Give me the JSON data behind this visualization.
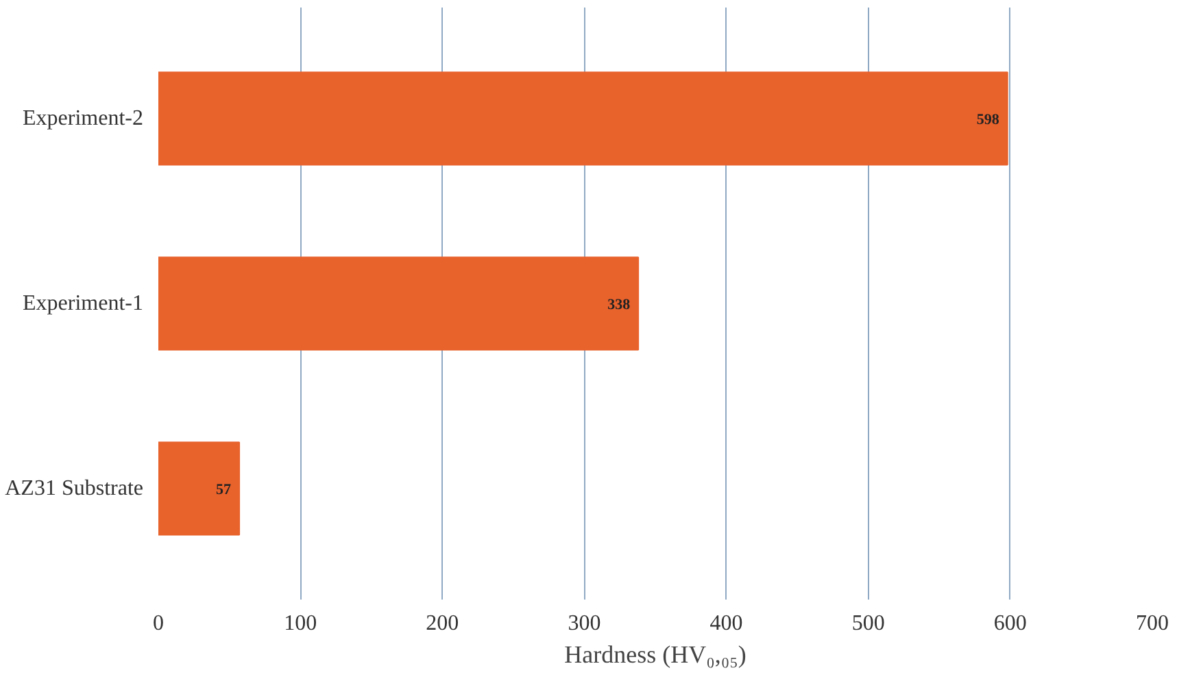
{
  "chart_data": {
    "type": "bar",
    "orientation": "horizontal",
    "xlabel": "Hardness (HV₀,₀₅)",
    "categories": [
      "Experiment-2",
      "Experiment-1",
      "AZ31 Substrate"
    ],
    "values": [
      598,
      338,
      57
    ],
    "color": "#e8622c",
    "xlim": [
      0,
      700
    ],
    "xticks": [
      0,
      100,
      200,
      300,
      400,
      500,
      600,
      700
    ],
    "grid": "x",
    "data_labels": true
  }
}
